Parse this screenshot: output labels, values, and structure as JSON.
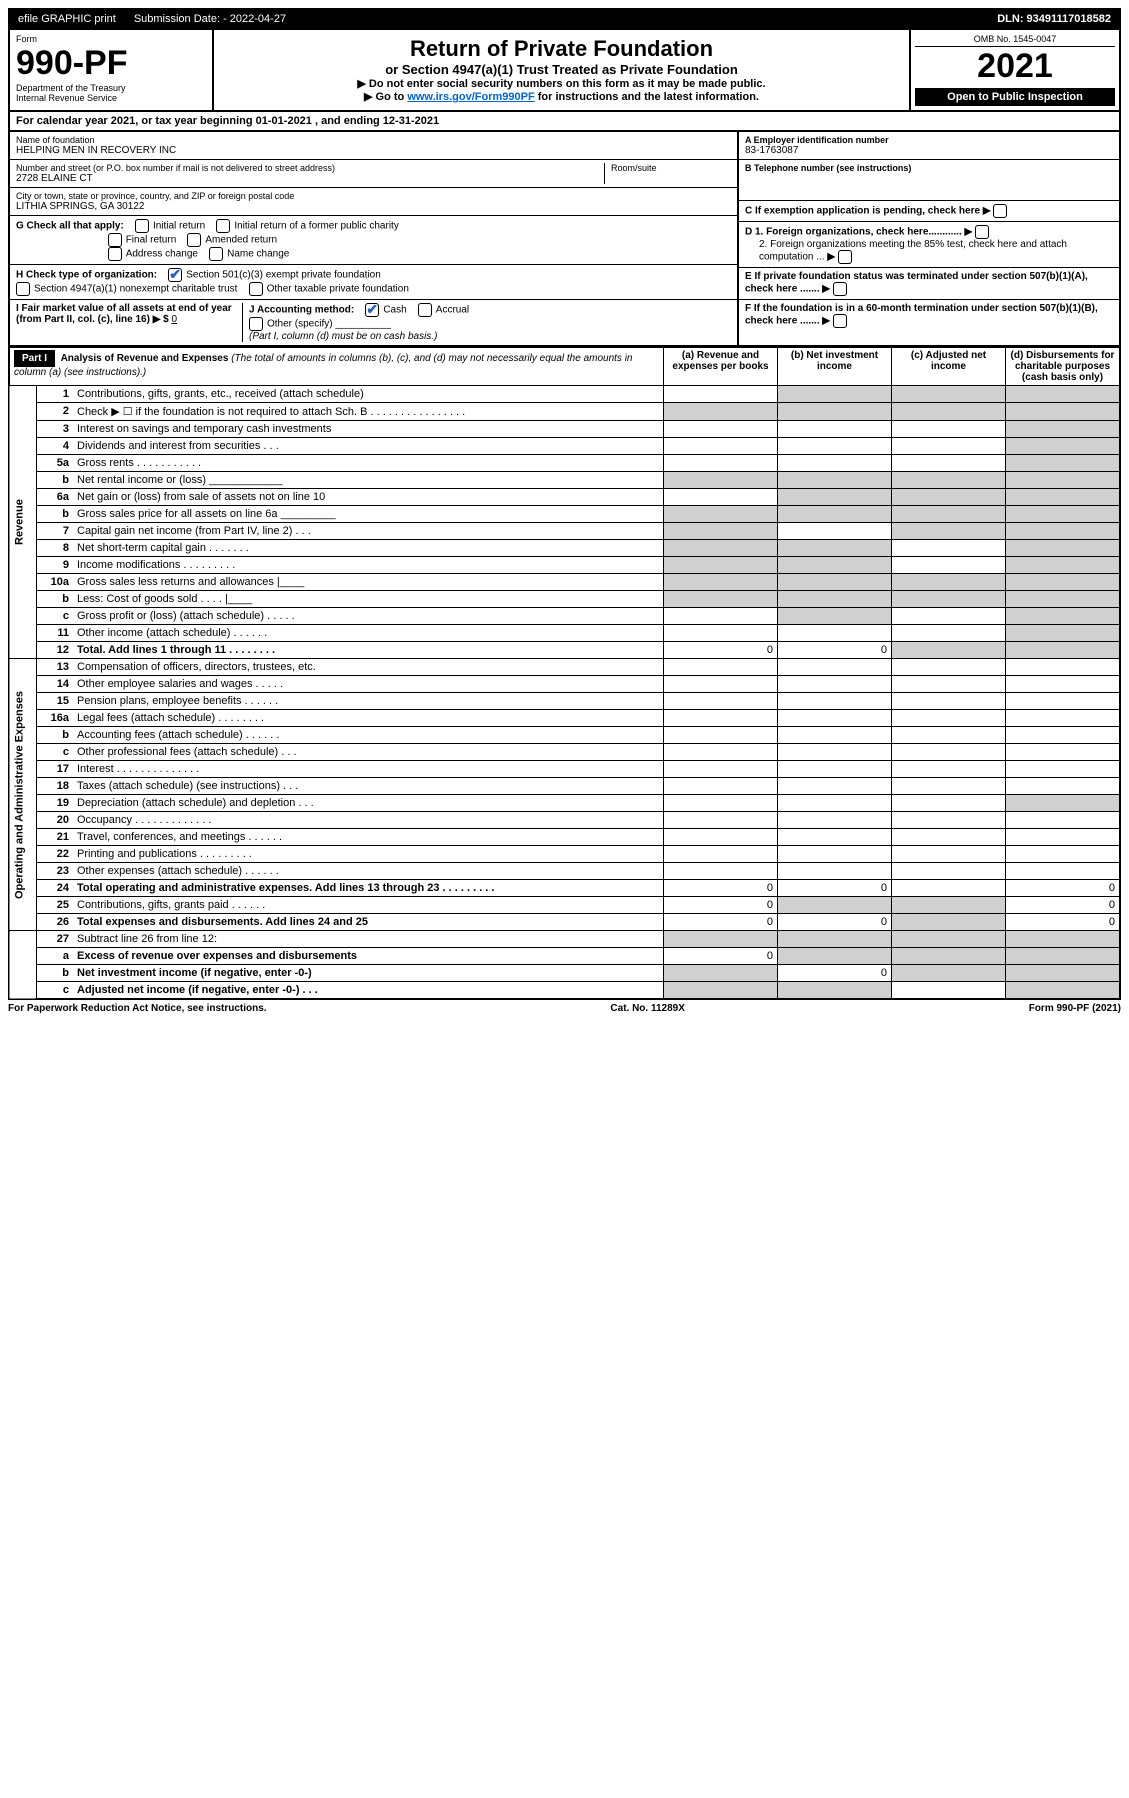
{
  "topbar": {
    "efile": "efile GRAPHIC print",
    "submission_label": "Submission Date: - 2022-04-27",
    "dln": "DLN: 93491117018582"
  },
  "header": {
    "form_label": "Form",
    "form_number": "990-PF",
    "dept": "Department of the Treasury",
    "irs": "Internal Revenue Service",
    "title": "Return of Private Foundation",
    "subtitle": "or Section 4947(a)(1) Trust Treated as Private Foundation",
    "note1": "▶ Do not enter social security numbers on this form as it may be made public.",
    "note2_pre": "▶ Go to ",
    "note2_link": "www.irs.gov/Form990PF",
    "note2_post": " for instructions and the latest information.",
    "omb": "OMB No. 1545-0047",
    "year": "2021",
    "open": "Open to Public Inspection"
  },
  "calyear": "For calendar year 2021, or tax year beginning 01-01-2021          , and ending 12-31-2021",
  "info": {
    "name_label": "Name of foundation",
    "name": "HELPING MEN IN RECOVERY INC",
    "addr_label": "Number and street (or P.O. box number if mail is not delivered to street address)",
    "addr": "2728 ELAINE CT",
    "room_label": "Room/suite",
    "city_label": "City or town, state or province, country, and ZIP or foreign postal code",
    "city": "LITHIA SPRINGS, GA  30122",
    "ein_label": "A Employer identification number",
    "ein": "83-1763087",
    "tel_label": "B Telephone number (see instructions)",
    "c_label": "C If exemption application is pending, check here",
    "d1_label": "D 1. Foreign organizations, check here............",
    "d2_label": "2. Foreign organizations meeting the 85% test, check here and attach computation ...",
    "e_label": "E  If private foundation status was terminated under section 507(b)(1)(A), check here .......",
    "f_label": "F  If the foundation is in a 60-month termination under section 507(b)(1)(B), check here .......",
    "g_label": "G Check all that apply:",
    "g_opts": [
      "Initial return",
      "Initial return of a former public charity",
      "Final return",
      "Amended return",
      "Address change",
      "Name change"
    ],
    "h_label": "H Check type of organization:",
    "h_opt1": "Section 501(c)(3) exempt private foundation",
    "h_opt2": "Section 4947(a)(1) nonexempt charitable trust",
    "h_opt3": "Other taxable private foundation",
    "i_label": "I Fair market value of all assets at end of year (from Part II, col. (c), line 16) ▶ $",
    "i_val": "0",
    "j_label": "J Accounting method:",
    "j_cash": "Cash",
    "j_accrual": "Accrual",
    "j_other": "Other (specify)",
    "j_note": "(Part I, column (d) must be on cash basis.)"
  },
  "part1": {
    "label": "Part I",
    "title": "Analysis of Revenue and Expenses",
    "title_note": "(The total of amounts in columns (b), (c), and (d) may not necessarily equal the amounts in column (a) (see instructions).)",
    "col_a": "(a)  Revenue and expenses per books",
    "col_b": "(b)  Net investment income",
    "col_c": "(c)  Adjusted net income",
    "col_d": "(d)  Disbursements for charitable purposes (cash basis only)"
  },
  "sections": {
    "revenue": "Revenue",
    "expenses": "Operating and Administrative Expenses"
  },
  "rows": [
    {
      "n": "1",
      "d": "Contributions, gifts, grants, etc., received (attach schedule)",
      "shade": [
        false,
        true,
        true,
        true
      ]
    },
    {
      "n": "2",
      "d": "Check ▶ ☐ if the foundation is not required to attach Sch. B  .  .  .  .  .  .  .  .  .  .  .  .  .  .  .  .",
      "shade": [
        true,
        true,
        true,
        true
      ]
    },
    {
      "n": "3",
      "d": "Interest on savings and temporary cash investments",
      "shade": [
        false,
        false,
        false,
        true
      ]
    },
    {
      "n": "4",
      "d": "Dividends and interest from securities   .   .   .",
      "shade": [
        false,
        false,
        false,
        true
      ]
    },
    {
      "n": "5a",
      "d": "Gross rents   .   .   .   .   .   .   .   .   .   .   .",
      "shade": [
        false,
        false,
        false,
        true
      ]
    },
    {
      "n": "b",
      "d": "Net rental income or (loss)  ____________",
      "shade": [
        true,
        true,
        true,
        true
      ]
    },
    {
      "n": "6a",
      "d": "Net gain or (loss) from sale of assets not on line 10",
      "shade": [
        false,
        true,
        true,
        true
      ]
    },
    {
      "n": "b",
      "d": "Gross sales price for all assets on line 6a _________",
      "shade": [
        true,
        true,
        true,
        true
      ]
    },
    {
      "n": "7",
      "d": "Capital gain net income (from Part IV, line 2)   .   .   .",
      "shade": [
        true,
        false,
        true,
        true
      ]
    },
    {
      "n": "8",
      "d": "Net short-term capital gain   .   .   .   .   .   .   .",
      "shade": [
        true,
        true,
        false,
        true
      ]
    },
    {
      "n": "9",
      "d": "Income modifications   .   .   .   .   .   .   .   .   .",
      "shade": [
        true,
        true,
        false,
        true
      ]
    },
    {
      "n": "10a",
      "d": "Gross sales less returns and allowances  |____",
      "shade": [
        true,
        true,
        true,
        true
      ]
    },
    {
      "n": "b",
      "d": "Less: Cost of goods sold   .   .   .   .   |____",
      "shade": [
        true,
        true,
        true,
        true
      ]
    },
    {
      "n": "c",
      "d": "Gross profit or (loss) (attach schedule)   .   .   .   .   .",
      "shade": [
        false,
        true,
        false,
        true
      ]
    },
    {
      "n": "11",
      "d": "Other income (attach schedule)   .   .   .   .   .   .",
      "shade": [
        false,
        false,
        false,
        true
      ]
    },
    {
      "n": "12",
      "d": "Total. Add lines 1 through 11   .   .   .   .   .   .   .   .",
      "a": "0",
      "b": "0",
      "bold": true,
      "shade": [
        false,
        false,
        true,
        true
      ]
    },
    {
      "n": "13",
      "d": "Compensation of officers, directors, trustees, etc.",
      "shade": [
        false,
        false,
        false,
        false
      ],
      "sec": "exp"
    },
    {
      "n": "14",
      "d": "Other employee salaries and wages   .   .   .   .   .",
      "shade": [
        false,
        false,
        false,
        false
      ]
    },
    {
      "n": "15",
      "d": "Pension plans, employee benefits   .   .   .   .   .   .",
      "shade": [
        false,
        false,
        false,
        false
      ]
    },
    {
      "n": "16a",
      "d": "Legal fees (attach schedule)   .   .   .   .   .   .   .   .",
      "shade": [
        false,
        false,
        false,
        false
      ]
    },
    {
      "n": "b",
      "d": "Accounting fees (attach schedule)   .   .   .   .   .   .",
      "shade": [
        false,
        false,
        false,
        false
      ]
    },
    {
      "n": "c",
      "d": "Other professional fees (attach schedule)   .   .   .",
      "shade": [
        false,
        false,
        false,
        false
      ]
    },
    {
      "n": "17",
      "d": "Interest   .   .   .   .   .   .   .   .   .   .   .   .   .   .",
      "shade": [
        false,
        false,
        false,
        false
      ]
    },
    {
      "n": "18",
      "d": "Taxes (attach schedule) (see instructions)   .   .   .",
      "shade": [
        false,
        false,
        false,
        false
      ]
    },
    {
      "n": "19",
      "d": "Depreciation (attach schedule) and depletion   .   .   .",
      "shade": [
        false,
        false,
        false,
        true
      ]
    },
    {
      "n": "20",
      "d": "Occupancy   .   .   .   .   .   .   .   .   .   .   .   .   .",
      "shade": [
        false,
        false,
        false,
        false
      ]
    },
    {
      "n": "21",
      "d": "Travel, conferences, and meetings   .   .   .   .   .   .",
      "shade": [
        false,
        false,
        false,
        false
      ]
    },
    {
      "n": "22",
      "d": "Printing and publications   .   .   .   .   .   .   .   .   .",
      "shade": [
        false,
        false,
        false,
        false
      ]
    },
    {
      "n": "23",
      "d": "Other expenses (attach schedule)   .   .   .   .   .   .",
      "shade": [
        false,
        false,
        false,
        false
      ]
    },
    {
      "n": "24",
      "d": "Total operating and administrative expenses. Add lines 13 through 23   .   .   .   .   .   .   .   .   .",
      "a": "0",
      "b": "0",
      "d_val": "0",
      "bold": true,
      "shade": [
        false,
        false,
        false,
        false
      ]
    },
    {
      "n": "25",
      "d": "Contributions, gifts, grants paid   .   .   .   .   .   .",
      "a": "0",
      "d_val": "0",
      "shade": [
        false,
        true,
        true,
        false
      ]
    },
    {
      "n": "26",
      "d": "Total expenses and disbursements. Add lines 24 and 25",
      "a": "0",
      "b": "0",
      "d_val": "0",
      "bold": true,
      "shade": [
        false,
        false,
        true,
        false
      ]
    },
    {
      "n": "27",
      "d": "Subtract line 26 from line 12:",
      "shade": [
        true,
        true,
        true,
        true
      ],
      "sec": "end"
    },
    {
      "n": "a",
      "d": "Excess of revenue over expenses and disbursements",
      "a": "0",
      "bold": true,
      "shade": [
        false,
        true,
        true,
        true
      ]
    },
    {
      "n": "b",
      "d": "Net investment income (if negative, enter -0-)",
      "b": "0",
      "bold": true,
      "shade": [
        true,
        false,
        true,
        true
      ]
    },
    {
      "n": "c",
      "d": "Adjusted net income (if negative, enter -0-)   .   .   .",
      "bold": true,
      "shade": [
        true,
        true,
        false,
        true
      ]
    }
  ],
  "footer": {
    "left": "For Paperwork Reduction Act Notice, see instructions.",
    "mid": "Cat. No. 11289X",
    "right": "Form 990-PF (2021)"
  }
}
